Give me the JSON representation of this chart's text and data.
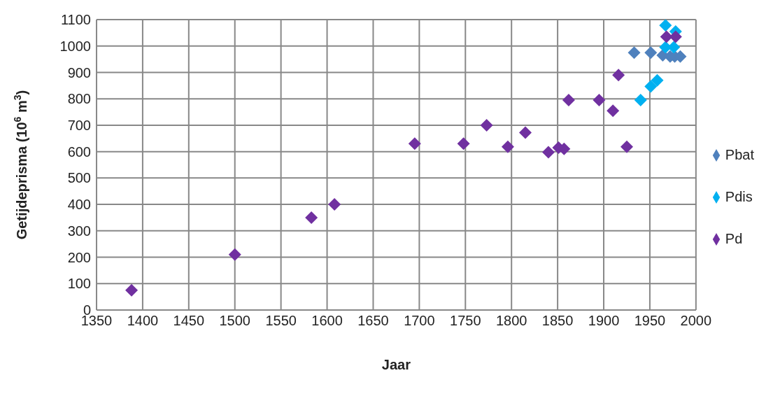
{
  "chart_data": {
    "type": "scatter",
    "xlabel": "Jaar",
    "ylabel": "Getijdeprisma (10$^{6}$ m$^{3}$)",
    "xlim": [
      1350,
      2000
    ],
    "xticks": [
      1350,
      1400,
      1450,
      1500,
      1550,
      1600,
      1650,
      1700,
      1750,
      1800,
      1850,
      1900,
      1950,
      2000
    ],
    "ylim": [
      0,
      1100
    ],
    "yticks": [
      0,
      100,
      200,
      300,
      400,
      500,
      600,
      700,
      800,
      900,
      1000,
      1100
    ],
    "grid": true,
    "legend": "right",
    "marker": "diamond",
    "series": [
      {
        "name": "Pbat",
        "color": "#4f81bd",
        "x": [
          1933,
          1951,
          1964,
          1972,
          1977,
          1983
        ],
        "values": [
          975,
          975,
          965,
          960,
          960,
          960
        ]
      },
      {
        "name": "Pdis",
        "color": "#00b0f0",
        "x": [
          1940,
          1951,
          1958,
          1967,
          1976,
          1967,
          1978
        ],
        "values": [
          795,
          847,
          870,
          995,
          995,
          1078,
          1055
        ]
      },
      {
        "name": "Pd",
        "color": "#7030a0",
        "x": [
          1388,
          1500,
          1583,
          1608,
          1695,
          1748,
          1773,
          1796,
          1815,
          1840,
          1851,
          1857,
          1862,
          1895,
          1910,
          1916,
          1925,
          1968,
          1978
        ],
        "values": [
          75,
          210,
          350,
          400,
          630,
          630,
          700,
          618,
          672,
          598,
          615,
          610,
          795,
          795,
          755,
          890,
          618,
          1035,
          1035
        ]
      }
    ]
  }
}
